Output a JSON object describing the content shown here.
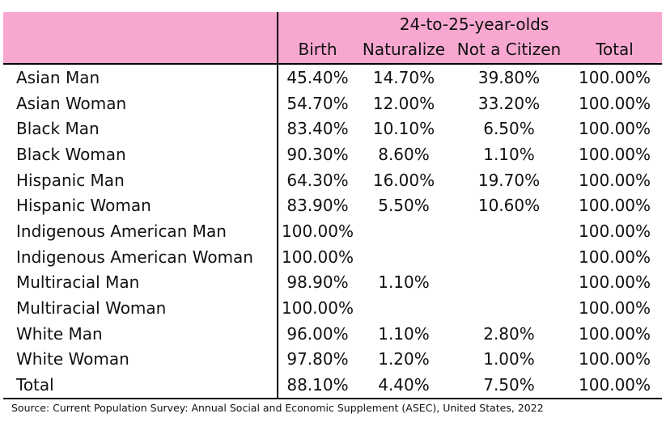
{
  "table": {
    "group_header": "24-to-25-year-olds",
    "columns": [
      "Birth",
      "Naturalize",
      "Not a Citizen",
      "Total"
    ],
    "rows": [
      {
        "label": "Asian Man",
        "values": [
          "45.40%",
          "14.70%",
          "39.80%",
          "100.00%"
        ]
      },
      {
        "label": "Asian Woman",
        "values": [
          "54.70%",
          "12.00%",
          "33.20%",
          "100.00%"
        ]
      },
      {
        "label": "Black Man",
        "values": [
          "83.40%",
          "10.10%",
          "6.50%",
          "100.00%"
        ]
      },
      {
        "label": "Black Woman",
        "values": [
          "90.30%",
          "8.60%",
          "1.10%",
          "100.00%"
        ]
      },
      {
        "label": "Hispanic Man",
        "values": [
          "64.30%",
          "16.00%",
          "19.70%",
          "100.00%"
        ]
      },
      {
        "label": "Hispanic Woman",
        "values": [
          "83.90%",
          "5.50%",
          "10.60%",
          "100.00%"
        ]
      },
      {
        "label": "Indigenous American Man",
        "values": [
          "100.00%",
          "",
          "",
          "100.00%"
        ]
      },
      {
        "label": "Indigenous American Woman",
        "values": [
          "100.00%",
          "",
          "",
          "100.00%"
        ]
      },
      {
        "label": "Multiracial Man",
        "values": [
          "98.90%",
          "1.10%",
          "",
          "100.00%"
        ]
      },
      {
        "label": "Multiracial Woman",
        "values": [
          "100.00%",
          "",
          "",
          "100.00%"
        ]
      },
      {
        "label": "White Man",
        "values": [
          "96.00%",
          "1.10%",
          "2.80%",
          "100.00%"
        ]
      },
      {
        "label": "White Woman",
        "values": [
          "97.80%",
          "1.20%",
          "1.00%",
          "100.00%"
        ]
      },
      {
        "label": "Total",
        "values": [
          "88.10%",
          "4.40%",
          "7.50%",
          "100.00%"
        ]
      }
    ],
    "header_color": "#f8a8d0"
  },
  "source": "Source: Current Population Survey: Annual Social and Economic Supplement (ASEC), United States, 2022"
}
